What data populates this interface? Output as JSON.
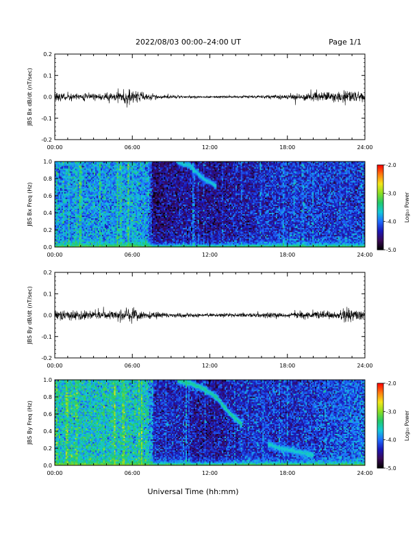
{
  "header": {
    "title": "2022/08/03  00:00–24:00 UT",
    "page": "Page 1/1"
  },
  "footer": {
    "xlabel": "Universal Time (hh:mm)"
  },
  "colors": {
    "trace": "#000000",
    "colormap": [
      "#000000",
      "#3a0a55",
      "#1a18b8",
      "#1f6cff",
      "#14c8d8",
      "#22c96a",
      "#8cde22",
      "#f2e61a",
      "#ff7a10",
      "#ff0000"
    ]
  },
  "chart_data": [
    {
      "type": "line",
      "ylabel": "JBS Bx dB/dt (nT/sec)",
      "x_ticks": [
        "00:00",
        "06:00",
        "12:00",
        "18:00",
        "24:00"
      ],
      "y_ticks": [
        "0.2",
        "0.1",
        "0.0",
        "-0.1",
        "-0.2"
      ],
      "ylim": [
        -0.2,
        0.2
      ],
      "xlim_hours": [
        0,
        24
      ],
      "series": [
        {
          "x_hours": [
            0,
            1,
            2,
            3,
            4,
            5,
            5.5,
            6,
            6.5,
            7,
            8,
            9,
            10,
            11,
            12,
            13,
            14,
            15,
            16,
            17,
            18,
            19,
            20,
            21,
            22,
            22.5,
            23,
            24
          ],
          "amplitude": [
            0.03,
            0.028,
            0.025,
            0.025,
            0.028,
            0.04,
            0.05,
            0.045,
            0.045,
            0.03,
            0.02,
            0.012,
            0.01,
            0.009,
            0.008,
            0.008,
            0.008,
            0.01,
            0.012,
            0.015,
            0.02,
            0.025,
            0.028,
            0.03,
            0.035,
            0.05,
            0.04,
            0.03
          ]
        }
      ]
    },
    {
      "type": "heatmap",
      "ylabel": "JBS Bx Freq (Hz)",
      "colorbar_label": "Log₁₀ Power",
      "colorbar_ticks": [
        "-2.0",
        "-3.0",
        "-4.0",
        "-5.0"
      ],
      "color_range": [
        -5.0,
        -2.0
      ],
      "x_ticks": [
        "00:00",
        "06:00",
        "12:00",
        "18:00",
        "24:00"
      ],
      "y_ticks": [
        "1.0",
        "0.8",
        "0.6",
        "0.4",
        "0.2",
        "0.0"
      ],
      "ylim": [
        0,
        1.0
      ],
      "xlim_hours": [
        0,
        24
      ],
      "background_log_power": {
        "x_hours": [
          0,
          6,
          7.2,
          7.6,
          9,
          10,
          12,
          14,
          16,
          18,
          20,
          22,
          24
        ],
        "values": [
          -3.9,
          -3.8,
          -3.8,
          -4.6,
          -4.5,
          -4.4,
          -4.5,
          -4.4,
          -4.3,
          -4.2,
          -4.2,
          -4.2,
          -4.2
        ]
      },
      "features": [
        {
          "kind": "low_freq_band",
          "log_power": -3.0
        },
        {
          "kind": "arc",
          "x_hours": [
            9.5,
            10.5,
            11.5,
            12.5
          ],
          "freq_hz": [
            1.0,
            0.95,
            0.8,
            0.72
          ],
          "log_power": -3.5
        }
      ]
    },
    {
      "type": "line",
      "ylabel": "JBS By dB/dt (nT/sec)",
      "x_ticks": [
        "00:00",
        "06:00",
        "12:00",
        "18:00",
        "24:00"
      ],
      "y_ticks": [
        "0.2",
        "0.1",
        "0.0",
        "-0.1",
        "-0.2"
      ],
      "ylim": [
        -0.2,
        0.2
      ],
      "xlim_hours": [
        0,
        24
      ],
      "series": [
        {
          "x_hours": [
            0,
            1,
            2,
            3,
            4,
            5,
            5.5,
            6,
            6.5,
            7,
            8,
            9,
            10,
            11,
            12,
            13,
            14,
            15,
            16,
            17,
            18,
            19,
            20,
            21,
            22,
            22.5,
            23,
            24
          ],
          "amplitude": [
            0.03,
            0.035,
            0.035,
            0.03,
            0.03,
            0.035,
            0.045,
            0.05,
            0.045,
            0.03,
            0.022,
            0.018,
            0.015,
            0.014,
            0.013,
            0.014,
            0.015,
            0.016,
            0.02,
            0.02,
            0.022,
            0.025,
            0.025,
            0.025,
            0.03,
            0.055,
            0.05,
            0.03
          ]
        }
      ]
    },
    {
      "type": "heatmap",
      "ylabel": "JBS By Freq (Hz)",
      "colorbar_label": "Log₁₀ Power",
      "colorbar_ticks": [
        "-2.0",
        "-3.0",
        "-4.0",
        "-5.0"
      ],
      "color_range": [
        -5.0,
        -2.0
      ],
      "x_ticks": [
        "00:00",
        "06:00",
        "12:00",
        "18:00",
        "24:00"
      ],
      "y_ticks": [
        "1.0",
        "0.8",
        "0.6",
        "0.4",
        "0.2",
        "0.0"
      ],
      "ylim": [
        0,
        1.0
      ],
      "xlim_hours": [
        0,
        24
      ],
      "background_log_power": {
        "x_hours": [
          0,
          6,
          7.2,
          7.6,
          9,
          10,
          12,
          14,
          16,
          18,
          20,
          22,
          24
        ],
        "values": [
          -3.6,
          -3.6,
          -3.6,
          -4.3,
          -4.3,
          -4.3,
          -4.5,
          -4.3,
          -4.2,
          -4.3,
          -4.2,
          -4.1,
          -4.0
        ]
      },
      "features": [
        {
          "kind": "low_freq_band",
          "log_power": -2.9
        },
        {
          "kind": "arc",
          "x_hours": [
            9.5,
            10.5,
            11.5,
            12.5,
            13.5,
            14.5
          ],
          "freq_hz": [
            1.0,
            0.96,
            0.9,
            0.8,
            0.62,
            0.48
          ],
          "log_power": -3.3
        },
        {
          "kind": "arc",
          "x_hours": [
            16.5,
            17.5,
            18.5,
            20.0
          ],
          "freq_hz": [
            0.25,
            0.2,
            0.17,
            0.12
          ],
          "log_power": -3.5
        }
      ]
    }
  ]
}
